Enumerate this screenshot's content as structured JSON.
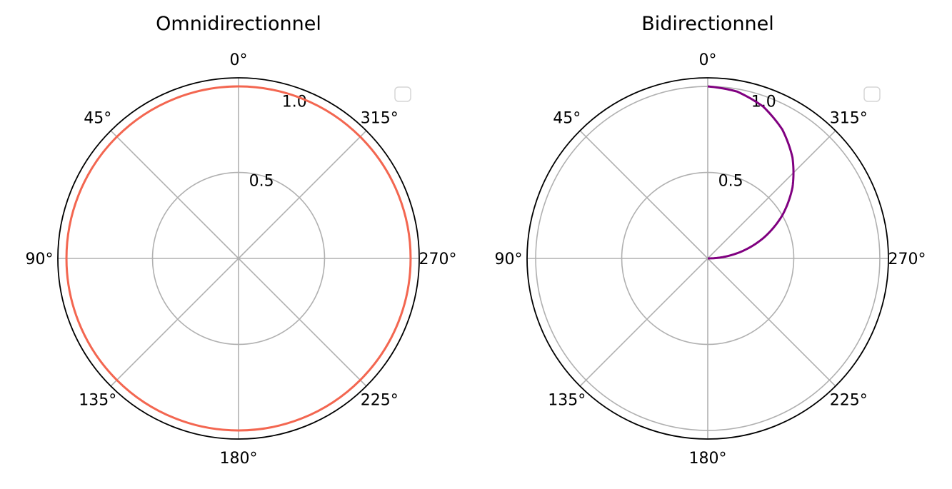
{
  "chart_data": [
    {
      "type": "polar-line",
      "title": "Omnidirectionnel",
      "theta_direction": "clockwise-labels-counterclockwise",
      "theta_zero_location": "top",
      "angle_tick_labels": [
        "0°",
        "45°",
        "90°",
        "135°",
        "180°",
        "225°",
        "270°",
        "315°"
      ],
      "radial_tick_labels": [
        "0.5",
        "1.0"
      ],
      "rlim": [
        0,
        1.05
      ],
      "grid": true,
      "legend": {
        "placement": "upper-right",
        "entries": []
      },
      "series": [
        {
          "color": "#f36650",
          "theta_deg": [
            0,
            45,
            90,
            135,
            180,
            225,
            270,
            315,
            360
          ],
          "r": [
            1.0,
            1.0,
            1.0,
            1.0,
            1.0,
            1.0,
            1.0,
            1.0,
            1.0
          ]
        }
      ]
    },
    {
      "type": "polar-line",
      "title": "Bidirectionnel",
      "theta_direction": "clockwise-labels-counterclockwise",
      "theta_zero_location": "top",
      "angle_tick_labels": [
        "0°",
        "45°",
        "90°",
        "135°",
        "180°",
        "225°",
        "270°",
        "315°"
      ],
      "radial_tick_labels": [
        "0.5",
        "1.0"
      ],
      "rlim": [
        0,
        1.05
      ],
      "grid": true,
      "legend": {
        "placement": "upper-right",
        "entries": []
      },
      "series": [
        {
          "color": "#800080",
          "theta_deg": [
            0,
            10,
            20,
            30,
            40,
            50,
            60,
            70,
            80,
            90
          ],
          "r": [
            1.0,
            0.985,
            0.94,
            0.866,
            0.766,
            0.643,
            0.5,
            0.342,
            0.174,
            0.0
          ]
        }
      ]
    }
  ]
}
